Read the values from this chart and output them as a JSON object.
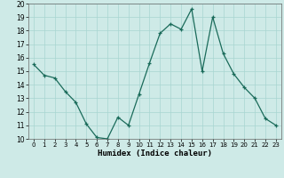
{
  "x": [
    0,
    1,
    2,
    3,
    4,
    5,
    6,
    7,
    8,
    9,
    10,
    11,
    12,
    13,
    14,
    15,
    16,
    17,
    18,
    19,
    20,
    21,
    22,
    23
  ],
  "y": [
    15.5,
    14.7,
    14.5,
    13.5,
    12.7,
    11.1,
    10.1,
    10.0,
    11.6,
    11.0,
    13.3,
    15.6,
    17.8,
    18.5,
    18.1,
    19.6,
    15.0,
    19.0,
    16.3,
    14.8,
    13.8,
    13.0,
    11.5,
    11.0
  ],
  "xlabel": "Humidex (Indice chaleur)",
  "xlim": [
    -0.5,
    23.5
  ],
  "ylim": [
    10,
    20
  ],
  "yticks": [
    10,
    11,
    12,
    13,
    14,
    15,
    16,
    17,
    18,
    19,
    20
  ],
  "xticks": [
    0,
    1,
    2,
    3,
    4,
    5,
    6,
    7,
    8,
    9,
    10,
    11,
    12,
    13,
    14,
    15,
    16,
    17,
    18,
    19,
    20,
    21,
    22,
    23
  ],
  "line_color": "#1a6b5a",
  "bg_color": "#ceeae7",
  "grid_color": "#a8d5d1",
  "axis_color": "#666666"
}
